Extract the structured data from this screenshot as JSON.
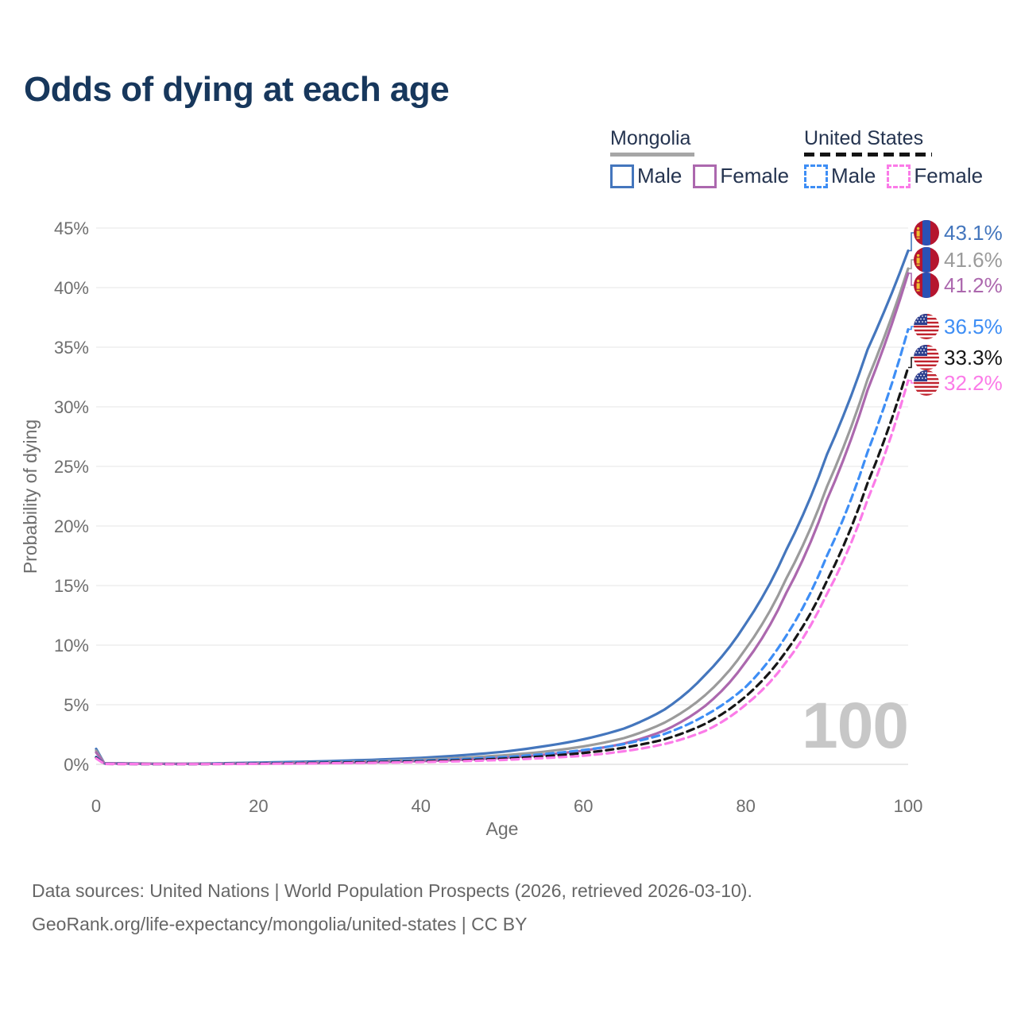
{
  "title": "Odds of dying at each age",
  "legend": {
    "mongolia": {
      "label": "Mongolia",
      "male_label": "Male",
      "female_label": "Female"
    },
    "united_states": {
      "label": "United States",
      "male_label": "Male",
      "female_label": "Female"
    }
  },
  "axes": {
    "y_title": "Probability of dying",
    "x_title": "Age",
    "y_tick_labels": [
      "0%",
      "5%",
      "10%",
      "15%",
      "20%",
      "25%",
      "30%",
      "35%",
      "40%",
      "45%"
    ],
    "y_tick_values": [
      0,
      5,
      10,
      15,
      20,
      25,
      30,
      35,
      40,
      45
    ],
    "x_tick_labels": [
      "0",
      "20",
      "40",
      "60",
      "80",
      "100"
    ],
    "x_tick_values": [
      0,
      20,
      40,
      60,
      80,
      100
    ]
  },
  "watermark_age": "100",
  "colors": {
    "title": "#17375c",
    "legend_text": "#253450",
    "axis_text": "#6e6e6e",
    "grid": "#e9e9e9",
    "grid_zero": "#dcdcdc",
    "watermark": "#c7c7c7",
    "footer": "#666666",
    "mongolia_underline": "#a6a6a6",
    "us_underline": "#141414",
    "mongolia_male": "#4476bd",
    "mongolia_both": "#9b9b9b",
    "mongolia_female": "#ac68ae",
    "us_male": "#3e8ef5",
    "us_both": "#161616",
    "us_female": "#fb7be8"
  },
  "chart_data": {
    "type": "line",
    "title": "Odds of dying at each age",
    "xlabel": "Age",
    "ylabel": "Probability of dying",
    "xlim": [
      0,
      100
    ],
    "ylim_percent": [
      0,
      45
    ],
    "grid": "horizontal",
    "legend_position": "top-right",
    "x_anchor_ages": [
      0,
      1,
      10,
      20,
      30,
      40,
      50,
      55,
      60,
      65,
      70,
      75,
      80,
      85,
      90,
      95,
      100
    ],
    "series": [
      {
        "name": "Mongolia Male",
        "flag": "mongolia",
        "color": "#4476bd",
        "dashed": false,
        "end_label": "43.1%",
        "end_value_percent": 43.1,
        "values_percent": [
          1.3,
          0.1,
          0.05,
          0.15,
          0.3,
          0.55,
          1.05,
          1.5,
          2.1,
          3.0,
          4.6,
          7.5,
          11.8,
          18.0,
          26.0,
          34.8,
          43.1
        ]
      },
      {
        "name": "Mongolia Both sexes",
        "flag": "mongolia",
        "color": "#9b9b9b",
        "dashed": false,
        "end_label": "41.6%",
        "end_value_percent": 41.6,
        "values_percent": [
          1.15,
          0.09,
          0.04,
          0.1,
          0.2,
          0.4,
          0.75,
          1.05,
          1.5,
          2.2,
          3.5,
          5.8,
          9.7,
          15.6,
          23.3,
          32.3,
          41.6
        ]
      },
      {
        "name": "Mongolia Female",
        "flag": "mongolia",
        "color": "#ac68ae",
        "dashed": false,
        "end_label": "41.2%",
        "end_value_percent": 41.2,
        "values_percent": [
          1.0,
          0.08,
          0.035,
          0.06,
          0.13,
          0.27,
          0.55,
          0.8,
          1.15,
          1.75,
          2.85,
          4.9,
          8.6,
          14.4,
          22.2,
          31.4,
          41.2
        ]
      },
      {
        "name": "United States Male",
        "flag": "us",
        "color": "#3e8ef5",
        "dashed": true,
        "end_label": "36.5%",
        "end_value_percent": 36.5,
        "values_percent": [
          0.62,
          0.045,
          0.02,
          0.1,
          0.2,
          0.32,
          0.6,
          0.85,
          1.2,
          1.7,
          2.55,
          4.1,
          6.5,
          10.8,
          17.5,
          26.2,
          36.5
        ]
      },
      {
        "name": "United States Both sexes",
        "flag": "us",
        "color": "#161616",
        "dashed": true,
        "end_label": "33.3%",
        "end_value_percent": 33.3,
        "values_percent": [
          0.56,
          0.04,
          0.017,
          0.07,
          0.15,
          0.25,
          0.47,
          0.67,
          0.95,
          1.4,
          2.1,
          3.4,
          5.7,
          9.5,
          15.4,
          23.6,
          33.3
        ]
      },
      {
        "name": "United States Female",
        "flag": "us",
        "color": "#fb7be8",
        "dashed": true,
        "end_label": "32.2%",
        "end_value_percent": 32.2,
        "values_percent": [
          0.5,
          0.035,
          0.015,
          0.045,
          0.1,
          0.19,
          0.37,
          0.52,
          0.72,
          1.1,
          1.7,
          2.8,
          5.0,
          8.6,
          14.3,
          22.2,
          32.2
        ]
      }
    ]
  },
  "footer": {
    "line1": "Data sources: United Nations | World Population Prospects (2026, retrieved 2026-03-10).",
    "line2": "GeoRank.org/life-expectancy/mongolia/united-states | CC BY"
  }
}
